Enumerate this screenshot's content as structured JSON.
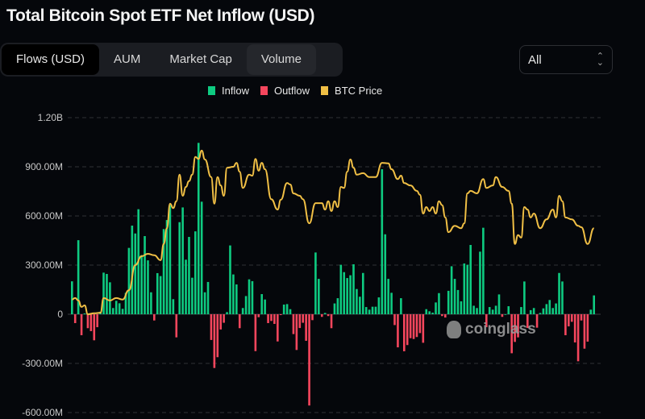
{
  "page": {
    "title": "Total Bitcoin Spot ETF Net Inflow (USD)"
  },
  "tabs": [
    {
      "label": "Flows (USD)",
      "active": true
    },
    {
      "label": "AUM",
      "active": false
    },
    {
      "label": "Market Cap",
      "active": false
    },
    {
      "label": "Volume",
      "active": false
    }
  ],
  "range_select": {
    "value": "All",
    "icon": "up-down-chevron-icon"
  },
  "watermark": "coinglass",
  "colors": {
    "inflow": "#0ecb81",
    "outflow": "#f6465d",
    "btc_price": "#f0bf45",
    "background": "#05070b",
    "grid": "#2e3036"
  },
  "chart_data": {
    "type": "bar+line",
    "title": "Total Bitcoin Spot ETF Net Inflow (USD)",
    "legend": [
      {
        "label": "Inflow",
        "color": "#0ecb81"
      },
      {
        "label": "Outflow",
        "color": "#f6465d"
      },
      {
        "label": "BTC Price",
        "color": "#f0bf45"
      }
    ],
    "legend_position": "top-center",
    "grid": true,
    "ylim": [
      -600,
      1200
    ],
    "yunit": "M USD",
    "yticks": [
      {
        "value": 1200,
        "label": "1.20B"
      },
      {
        "value": 900,
        "label": "900.00M"
      },
      {
        "value": 600,
        "label": "600.00M"
      },
      {
        "value": 300,
        "label": "300.00M"
      },
      {
        "value": 0,
        "label": "0"
      },
      {
        "value": -300,
        "label": "-300.00M"
      },
      {
        "value": -600,
        "label": "-600.00M"
      }
    ],
    "net_flow_millions": [
      201,
      -54,
      452,
      -128,
      5,
      -85,
      -103,
      -159,
      -79,
      16,
      254,
      246,
      195,
      38,
      82,
      67,
      33,
      131,
      405,
      541,
      493,
      641,
      361,
      477,
      329,
      134,
      -38,
      251,
      233,
      520,
      575,
      667,
      92,
      -141,
      562,
      652,
      333,
      472,
      223,
      506,
      1046,
      687,
      134,
      197,
      -157,
      -328,
      -262,
      -93,
      -52,
      13,
      420,
      243,
      182,
      -85,
      38,
      111,
      213,
      202,
      -225,
      -18,
      123,
      90,
      -54,
      -41,
      -59,
      -166,
      -5,
      59,
      62,
      31,
      -121,
      -218,
      -84,
      -52,
      -162,
      -557,
      -36,
      377,
      216,
      -16,
      8,
      -11,
      -85,
      66,
      98,
      302,
      257,
      221,
      238,
      305,
      154,
      107,
      252,
      44,
      28,
      46,
      46,
      103,
      885,
      488,
      216,
      131,
      -66,
      -202,
      98,
      -226,
      -188,
      -146,
      -151,
      -139,
      -115,
      -174,
      31,
      18,
      10,
      72,
      129,
      -11,
      -20,
      143,
      293,
      216,
      148,
      79,
      310,
      302,
      423,
      52,
      38,
      382,
      528,
      -79,
      44,
      28,
      52,
      121,
      -16,
      0,
      49,
      -238,
      -169,
      -141,
      44,
      200,
      -84,
      25,
      38,
      -82,
      8,
      36,
      62,
      87,
      38,
      66,
      252,
      200,
      -128,
      -74,
      -46,
      -172,
      -287,
      -38,
      -210,
      -167,
      28,
      115
    ],
    "btc_price_axis_lim": [
      19000,
      79000
    ],
    "btc_price": [
      [
        0,
        42000
      ],
      [
        1,
        42300
      ],
      [
        2,
        41800
      ],
      [
        3,
        40500
      ],
      [
        4,
        40800
      ],
      [
        5,
        39000
      ],
      [
        7,
        39200
      ],
      [
        9,
        39300
      ],
      [
        10,
        42300
      ],
      [
        12,
        41800
      ],
      [
        14,
        42300
      ],
      [
        16,
        42000
      ],
      [
        18,
        43900
      ],
      [
        20,
        49000
      ],
      [
        22,
        50800
      ],
      [
        24,
        51300
      ],
      [
        26,
        51000
      ],
      [
        28,
        50000
      ],
      [
        29,
        53300
      ],
      [
        30,
        56500
      ],
      [
        31,
        61500
      ],
      [
        32,
        60600
      ],
      [
        33,
        62000
      ],
      [
        34,
        67400
      ],
      [
        35,
        63100
      ],
      [
        36,
        64900
      ],
      [
        37,
        66100
      ],
      [
        38,
        67400
      ],
      [
        39,
        71000
      ],
      [
        40,
        70600
      ],
      [
        41,
        72300
      ],
      [
        42,
        70500
      ],
      [
        44,
        66900
      ],
      [
        45,
        61500
      ],
      [
        46,
        66900
      ],
      [
        47,
        65200
      ],
      [
        48,
        63100
      ],
      [
        49,
        68800
      ],
      [
        51,
        69000
      ],
      [
        52,
        69800
      ],
      [
        53,
        68000
      ],
      [
        54,
        64700
      ],
      [
        56,
        67400
      ],
      [
        57,
        67200
      ],
      [
        58,
        70600
      ],
      [
        59,
        68200
      ],
      [
        60,
        69800
      ],
      [
        61,
        68500
      ],
      [
        63,
        62400
      ],
      [
        65,
        60300
      ],
      [
        66,
        62300
      ],
      [
        68,
        65700
      ],
      [
        69,
        65400
      ],
      [
        70,
        63600
      ],
      [
        72,
        63100
      ],
      [
        73,
        62400
      ],
      [
        75,
        57500
      ],
      [
        77,
        61600
      ],
      [
        79,
        61600
      ],
      [
        80,
        60300
      ],
      [
        81,
        62000
      ],
      [
        82,
        60000
      ],
      [
        83,
        62000
      ],
      [
        84,
        60800
      ],
      [
        85,
        64900
      ],
      [
        86,
        64700
      ],
      [
        87,
        68000
      ],
      [
        88,
        70500
      ],
      [
        89,
        68800
      ],
      [
        90,
        67400
      ],
      [
        92,
        67700
      ],
      [
        94,
        66900
      ],
      [
        96,
        66900
      ],
      [
        98,
        69800
      ],
      [
        100,
        69700
      ],
      [
        101,
        68500
      ],
      [
        103,
        66500
      ],
      [
        104,
        67200
      ],
      [
        105,
        65700
      ],
      [
        107,
        65200
      ],
      [
        109,
        64100
      ],
      [
        110,
        63300
      ],
      [
        111,
        59500
      ],
      [
        112,
        60800
      ],
      [
        113,
        60000
      ],
      [
        114,
        60800
      ],
      [
        115,
        59500
      ],
      [
        116,
        62000
      ],
      [
        117,
        61200
      ],
      [
        118,
        58700
      ],
      [
        119,
        55700
      ],
      [
        121,
        57000
      ],
      [
        123,
        56500
      ],
      [
        124,
        57500
      ],
      [
        125,
        63600
      ],
      [
        126,
        64100
      ],
      [
        128,
        63600
      ],
      [
        130,
        66500
      ],
      [
        131,
        64700
      ],
      [
        133,
        65200
      ],
      [
        134,
        66900
      ],
      [
        136,
        64900
      ],
      [
        138,
        64100
      ],
      [
        139,
        61500
      ],
      [
        140,
        53300
      ],
      [
        141,
        55100
      ],
      [
        142,
        54600
      ],
      [
        143,
        60800
      ],
      [
        144,
        60300
      ],
      [
        145,
        58700
      ],
      [
        146,
        59500
      ],
      [
        148,
        56500
      ],
      [
        150,
        58300
      ],
      [
        152,
        60300
      ],
      [
        153,
        58700
      ],
      [
        154,
        63100
      ],
      [
        155,
        62000
      ],
      [
        156,
        58700
      ],
      [
        158,
        58300
      ],
      [
        160,
        57000
      ],
      [
        161,
        56700
      ],
      [
        163,
        53300
      ],
      [
        165,
        56500
      ]
    ]
  }
}
